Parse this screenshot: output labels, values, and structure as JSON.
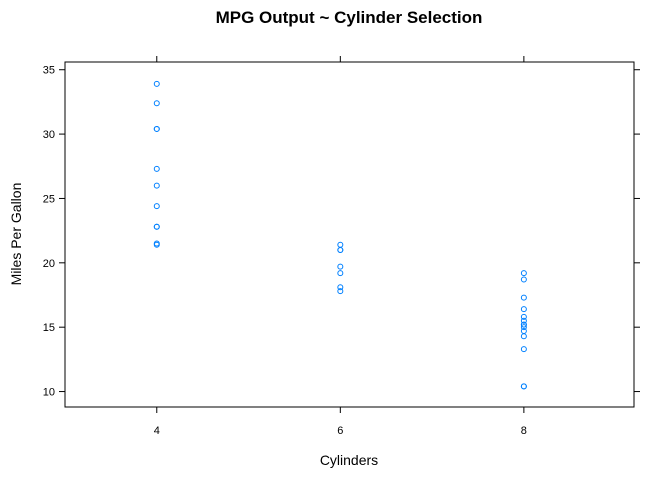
{
  "chart_data": {
    "type": "scatter",
    "title": "MPG Output ~ Cylinder Selection",
    "xlabel": "Cylinders",
    "ylabel": "Miles Per Gallon",
    "xlim": [
      3,
      9.2
    ],
    "ylim": [
      8.8,
      35.6
    ],
    "x_ticks": [
      4,
      6,
      8
    ],
    "y_ticks": [
      10,
      15,
      20,
      25,
      30,
      35
    ],
    "grid": false,
    "point_color": "#0080ff",
    "series": [
      {
        "points": [
          [
            4,
            22.8
          ],
          [
            4,
            24.4
          ],
          [
            4,
            22.8
          ],
          [
            4,
            32.4
          ],
          [
            4,
            30.4
          ],
          [
            4,
            33.9
          ],
          [
            4,
            21.5
          ],
          [
            4,
            27.3
          ],
          [
            4,
            26.0
          ],
          [
            4,
            30.4
          ],
          [
            4,
            21.4
          ],
          [
            6,
            21.0
          ],
          [
            6,
            21.0
          ],
          [
            6,
            21.4
          ],
          [
            6,
            18.1
          ],
          [
            6,
            19.2
          ],
          [
            6,
            17.8
          ],
          [
            6,
            19.7
          ],
          [
            8,
            18.7
          ],
          [
            8,
            14.3
          ],
          [
            8,
            16.4
          ],
          [
            8,
            17.3
          ],
          [
            8,
            15.2
          ],
          [
            8,
            10.4
          ],
          [
            8,
            10.4
          ],
          [
            8,
            14.7
          ],
          [
            8,
            15.5
          ],
          [
            8,
            15.2
          ],
          [
            8,
            13.3
          ],
          [
            8,
            19.2
          ],
          [
            8,
            15.8
          ],
          [
            8,
            15.0
          ]
        ]
      }
    ]
  }
}
